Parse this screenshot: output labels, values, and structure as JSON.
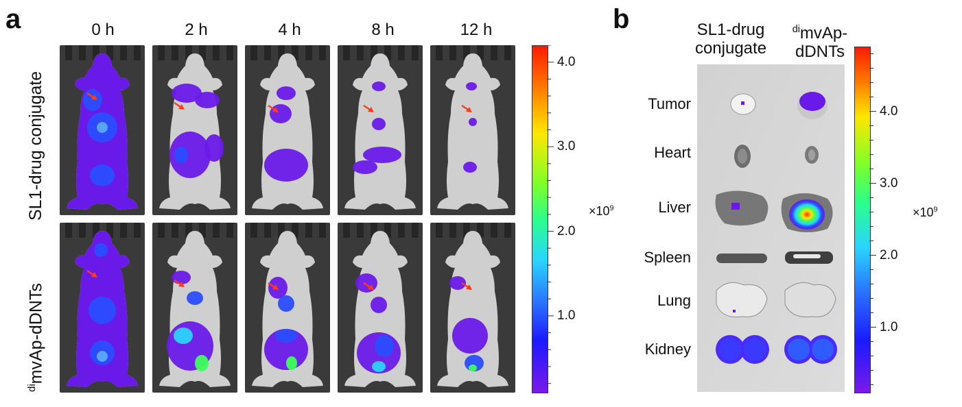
{
  "panel_a": {
    "letter": "a",
    "timepoints": [
      "0 h",
      "2 h",
      "4 h",
      "8 h",
      "12 h"
    ],
    "rows": [
      {
        "label": "SL1-drug conjugate",
        "sup": "",
        "label_main": "SL1-drug conjugate"
      },
      {
        "label": "dimvAp-dDNTs",
        "sup": "di",
        "label_main": "mvAp-dDNTs"
      }
    ],
    "colorbar": {
      "ticks": [
        "4.0",
        "3.0",
        "2.0",
        "1.0"
      ],
      "tick_values": [
        4.0,
        3.0,
        2.0,
        1.0
      ],
      "min": 0.1,
      "max": 4.2,
      "unit_base": "×10",
      "unit_exp": "9"
    }
  },
  "panel_b": {
    "letter": "b",
    "columns": [
      {
        "line1": "SL1-drug",
        "line2": "conjugate",
        "sup": ""
      },
      {
        "line1": "mvAp-",
        "line2": "dDNTs",
        "sup": "di"
      }
    ],
    "organs": [
      "Tumor",
      "Heart",
      "Liver",
      "Spleen",
      "Lung",
      "Kidney"
    ],
    "colorbar": {
      "ticks": [
        "4.0",
        "3.0",
        "2.0",
        "1.0"
      ],
      "tick_values": [
        4.0,
        3.0,
        2.0,
        1.0
      ],
      "min": 0.1,
      "max": 4.9,
      "unit_base": "×10",
      "unit_exp": "9"
    }
  },
  "colors": {
    "signal_violet": "#6a1ae8",
    "signal_blue": "#2a4dff",
    "signal_cyan": "#2ad4ff",
    "signal_green": "#3dff5a",
    "signal_red": "#ff2a10",
    "arrow": "#ff3b1a",
    "tile_bg": "#3a3a3a",
    "organ_bg": "#d9d9d9"
  }
}
